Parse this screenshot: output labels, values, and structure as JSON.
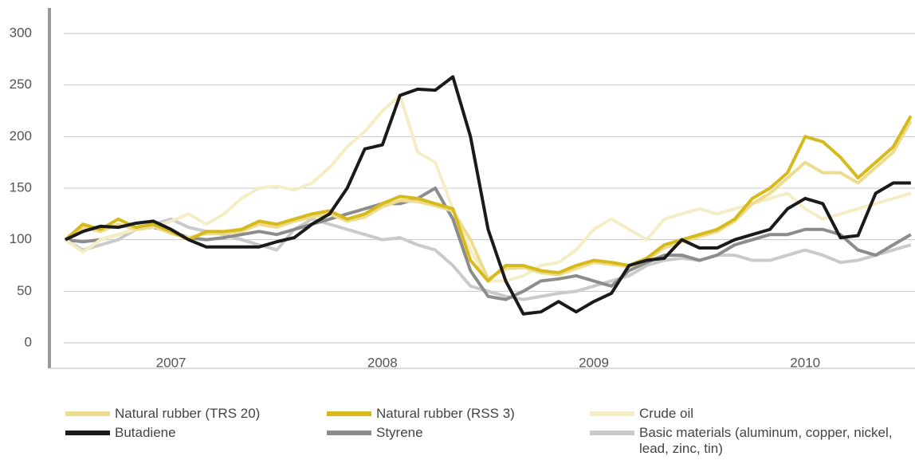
{
  "chart_data": {
    "type": "line",
    "categories": [
      null,
      null,
      null,
      null,
      null,
      null,
      "2007",
      null,
      null,
      null,
      null,
      null,
      null,
      null,
      null,
      null,
      null,
      null,
      "2008",
      null,
      null,
      null,
      null,
      null,
      null,
      null,
      null,
      null,
      null,
      null,
      "2009",
      null,
      null,
      null,
      null,
      null,
      null,
      null,
      null,
      null,
      null,
      null,
      "2010",
      null,
      null,
      null,
      null,
      null,
      null
    ],
    "ylim": [
      0,
      300
    ],
    "yticks": [
      0,
      50,
      100,
      150,
      200,
      250,
      300
    ],
    "grid": true,
    "series": [
      {
        "name": "Natural rubber  (TRS 20)",
        "color": "#eddc8e",
        "values": [
          100,
          112,
          108,
          115,
          110,
          113,
          106,
          102,
          106,
          106,
          108,
          115,
          112,
          118,
          122,
          125,
          118,
          122,
          132,
          138,
          137,
          133,
          128,
          100,
          62,
          72,
          73,
          68,
          66,
          72,
          78,
          76,
          74,
          80,
          92,
          98,
          103,
          108,
          118,
          135,
          145,
          160,
          175,
          165,
          165,
          155,
          170,
          185,
          215
        ]
      },
      {
        "name": "Natural rubber  (RSS 3)",
        "color": "#d6ba1c",
        "values": [
          100,
          115,
          110,
          120,
          112,
          115,
          108,
          100,
          108,
          108,
          110,
          118,
          115,
          120,
          125,
          128,
          120,
          125,
          135,
          142,
          140,
          135,
          130,
          80,
          60,
          75,
          75,
          70,
          68,
          75,
          80,
          78,
          75,
          82,
          95,
          100,
          105,
          110,
          120,
          140,
          150,
          165,
          200,
          195,
          180,
          160,
          175,
          190,
          220
        ]
      },
      {
        "name": "Crude oil",
        "color": "#f4edc6",
        "values": [
          100,
          88,
          100,
          105,
          110,
          112,
          118,
          125,
          115,
          125,
          140,
          150,
          152,
          148,
          155,
          170,
          190,
          205,
          225,
          240,
          185,
          175,
          130,
          90,
          60,
          60,
          65,
          75,
          78,
          90,
          110,
          120,
          110,
          100,
          120,
          125,
          130,
          125,
          130,
          135,
          140,
          145,
          130,
          120,
          125,
          130,
          135,
          140,
          145
        ]
      },
      {
        "name": "Butadiene",
        "color": "#1a1a1a",
        "values": [
          100,
          108,
          113,
          112,
          116,
          118,
          110,
          100,
          93,
          93,
          93,
          93,
          98,
          102,
          115,
          125,
          150,
          188,
          192,
          240,
          246,
          245,
          258,
          200,
          110,
          60,
          28,
          30,
          40,
          30,
          40,
          48,
          75,
          80,
          82,
          100,
          92,
          92,
          100,
          105,
          110,
          130,
          140,
          135,
          102,
          104,
          145,
          155,
          155
        ]
      },
      {
        "name": "Styrene",
        "color": "#8c8c8c",
        "values": [
          100,
          98,
          100,
          105,
          110,
          112,
          108,
          102,
          100,
          102,
          105,
          108,
          105,
          110,
          115,
          120,
          125,
          130,
          135,
          135,
          140,
          150,
          120,
          70,
          45,
          42,
          50,
          60,
          62,
          65,
          60,
          55,
          70,
          78,
          85,
          85,
          80,
          85,
          95,
          100,
          105,
          105,
          110,
          110,
          105,
          90,
          85,
          95,
          105
        ]
      },
      {
        "name": "Basic materials (aluminum, copper, nickel, lead, zinc, tin)",
        "color": "#cacaca",
        "values": [
          100,
          90,
          95,
          100,
          110,
          115,
          120,
          112,
          108,
          105,
          100,
          95,
          90,
          110,
          120,
          115,
          110,
          105,
          100,
          102,
          95,
          90,
          75,
          55,
          50,
          45,
          42,
          45,
          48,
          50,
          55,
          60,
          65,
          75,
          80,
          82,
          80,
          85,
          85,
          80,
          80,
          85,
          90,
          85,
          78,
          80,
          85,
          90,
          95
        ]
      }
    ]
  }
}
